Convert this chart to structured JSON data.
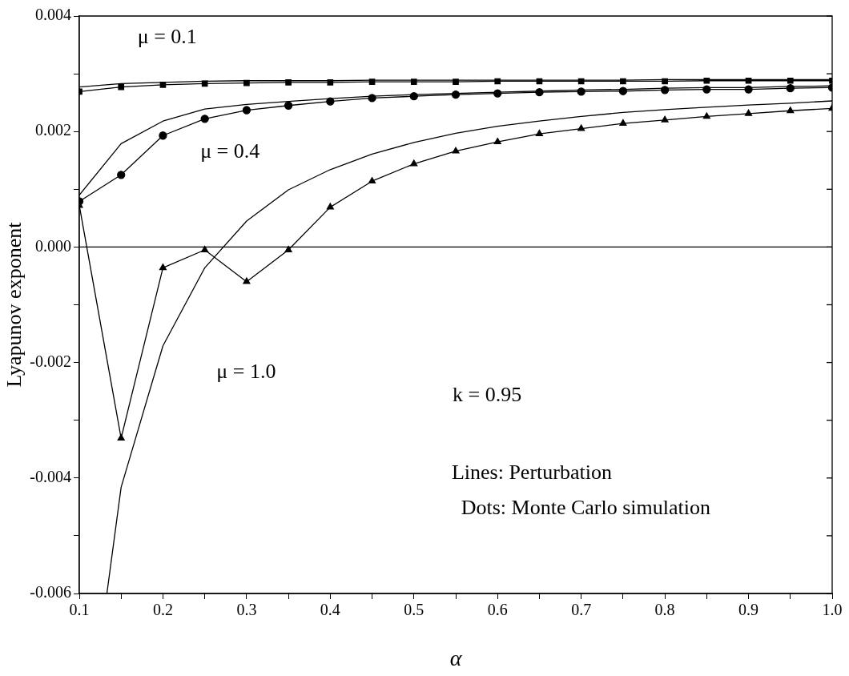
{
  "chart_data": {
    "type": "line",
    "xlabel": "α",
    "ylabel": "Lyapunov exponent",
    "x": [
      0.1,
      0.15,
      0.2,
      0.25,
      0.3,
      0.35,
      0.4,
      0.45,
      0.5,
      0.55,
      0.6,
      0.65,
      0.7,
      0.75,
      0.8,
      0.85,
      0.9,
      0.95,
      1.0
    ],
    "series": [
      {
        "color": "#000000",
        "marker": "none",
        "values": [
          0.00277,
          0.00283,
          0.00285,
          0.00287,
          0.00288,
          0.00288,
          0.00288,
          0.00289,
          0.00289,
          0.00289,
          0.00289,
          0.00289,
          0.00289,
          0.00289,
          0.0029,
          0.0029,
          0.0029,
          0.0029,
          0.0029
        ]
      },
      {
        "color": "#000000",
        "marker": "square",
        "values": [
          0.00269,
          0.00277,
          0.00281,
          0.00283,
          0.00284,
          0.00285,
          0.00285,
          0.00286,
          0.00286,
          0.00286,
          0.00287,
          0.00287,
          0.00287,
          0.00287,
          0.00287,
          0.00288,
          0.00288,
          0.00288,
          0.00288
        ]
      },
      {
        "color": "#000000",
        "marker": "none",
        "values": [
          0.0009,
          0.00179,
          0.00218,
          0.00239,
          0.00247,
          0.00252,
          0.00257,
          0.00261,
          0.00264,
          0.00266,
          0.00268,
          0.0027,
          0.00272,
          0.00273,
          0.00275,
          0.00276,
          0.00276,
          0.00278,
          0.00279
        ]
      },
      {
        "color": "#000000",
        "marker": "circle",
        "values": [
          0.00079,
          0.00125,
          0.00193,
          0.00222,
          0.00237,
          0.00245,
          0.00252,
          0.00258,
          0.00261,
          0.00264,
          0.00266,
          0.00268,
          0.00269,
          0.0027,
          0.00272,
          0.00273,
          0.00273,
          0.00275,
          0.00276
        ]
      },
      {
        "color": "#000000",
        "marker": "none",
        "x": [
          0.133,
          0.15,
          0.2,
          0.25,
          0.3,
          0.35,
          0.4,
          0.45,
          0.5,
          0.55,
          0.6,
          0.65,
          0.7,
          0.75,
          0.8,
          0.85,
          0.9,
          0.95,
          1.0
        ],
        "values": [
          -0.006,
          -0.00416,
          -0.00171,
          -0.00036,
          0.00045,
          0.00099,
          0.00134,
          0.00161,
          0.00181,
          0.00197,
          0.00209,
          0.00218,
          0.00226,
          0.00233,
          0.00238,
          0.00242,
          0.00246,
          0.00249,
          0.00253
        ]
      },
      {
        "color": "#000000",
        "marker": "triangle",
        "values": [
          0.00072,
          -0.00331,
          -0.00036,
          -5e-05,
          -0.0006,
          -5e-05,
          0.00069,
          0.00114,
          0.00144,
          0.00166,
          0.00182,
          0.00196,
          0.00205,
          0.00214,
          0.0022,
          0.00226,
          0.00231,
          0.00236,
          0.0024
        ]
      }
    ],
    "xlim": [
      0.1,
      1.0
    ],
    "xticks": [
      0.1,
      {
        "value": 0.15,
        "label": null
      },
      0.2,
      {
        "value": 0.25,
        "label": null
      },
      0.3,
      {
        "value": 0.35,
        "label": null
      },
      0.4,
      {
        "value": 0.45,
        "label": null
      },
      0.5,
      {
        "value": 0.55,
        "label": null
      },
      0.6,
      {
        "value": 0.65,
        "label": null
      },
      0.7,
      {
        "value": 0.75,
        "label": null
      },
      0.8,
      {
        "value": 0.85,
        "label": null
      },
      0.9,
      {
        "value": 0.95,
        "label": null
      },
      {
        "value": 1.0,
        "label": "1.0"
      }
    ],
    "ylim": [
      -0.006,
      0.004
    ],
    "yticks": [
      -0.006,
      {
        "value": -0.005,
        "label": null
      },
      -0.004,
      {
        "value": -0.003,
        "label": null
      },
      -0.002,
      {
        "value": -0.001,
        "label": null
      },
      {
        "value": 0,
        "label": "0.000"
      },
      {
        "value": 0.001,
        "label": null
      },
      0.002,
      {
        "value": 0.003,
        "label": null
      },
      0.004
    ],
    "ref_lines": [
      {
        "axis": "y",
        "value": 0,
        "color": "#000000"
      }
    ],
    "annotations": [
      "μ = 0.1",
      "μ = 0.4",
      "μ = 1.0",
      "k = 0.95",
      "Lines: Perturbation",
      " Dots: Monte Carlo simulation"
    ],
    "grid": false,
    "legend": false
  }
}
